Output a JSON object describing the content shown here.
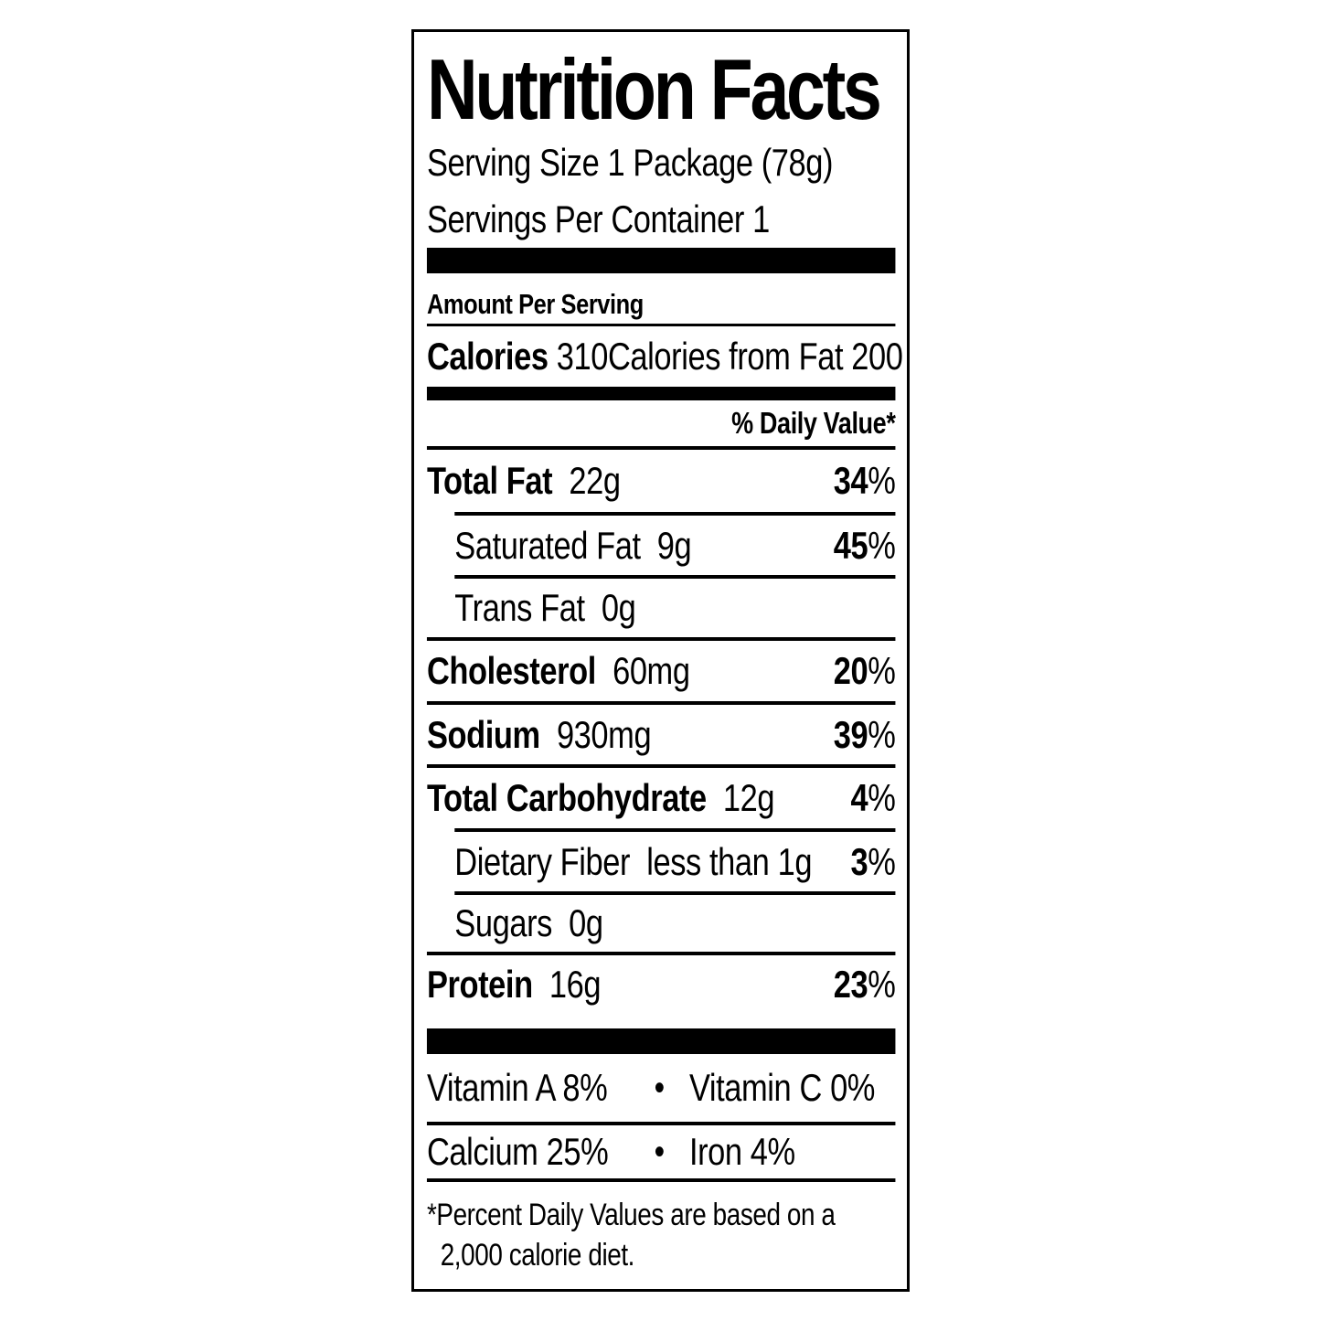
{
  "label": {
    "title": "Nutrition Facts",
    "serving_size": "Serving Size 1 Package (78g)",
    "servings_per_container": "Servings Per Container 1",
    "amount_per_serving": "Amount Per Serving",
    "calories": {
      "label": "Calories",
      "value": "310",
      "from_fat_label": "Calories from Fat",
      "from_fat_value": "200"
    },
    "daily_value_header": "% Daily Value*",
    "percent_sign": "%",
    "bullet": "•",
    "nutrients": [
      {
        "name": "Total Fat",
        "amount": "22g",
        "dv": "34"
      },
      {
        "name": "Saturated Fat",
        "amount": "9g",
        "dv": "45"
      },
      {
        "name": "Trans Fat",
        "amount": "0g"
      },
      {
        "name": "Cholesterol",
        "amount": "60mg",
        "dv": "20"
      },
      {
        "name": "Sodium",
        "amount": "930mg",
        "dv": "39"
      },
      {
        "name": "Total Carbohydrate",
        "amount": "12g",
        "dv": "4"
      },
      {
        "name": "Dietary Fiber",
        "amount": "less than 1g",
        "dv": "3"
      },
      {
        "name": "Sugars",
        "amount": "0g"
      },
      {
        "name": "Protein",
        "amount": "16g",
        "dv": "23"
      }
    ],
    "vitamins": [
      {
        "left": "Vitamin A 8%",
        "right": "Vitamin C 0%"
      },
      {
        "left": "Calcium 25%",
        "right": "Iron 4%"
      }
    ],
    "footnote_line1": "*Percent Daily Values are based on a",
    "footnote_line2": "2,000 calorie diet.",
    "colors": {
      "ink": "#000000",
      "background": "#ffffff"
    }
  }
}
